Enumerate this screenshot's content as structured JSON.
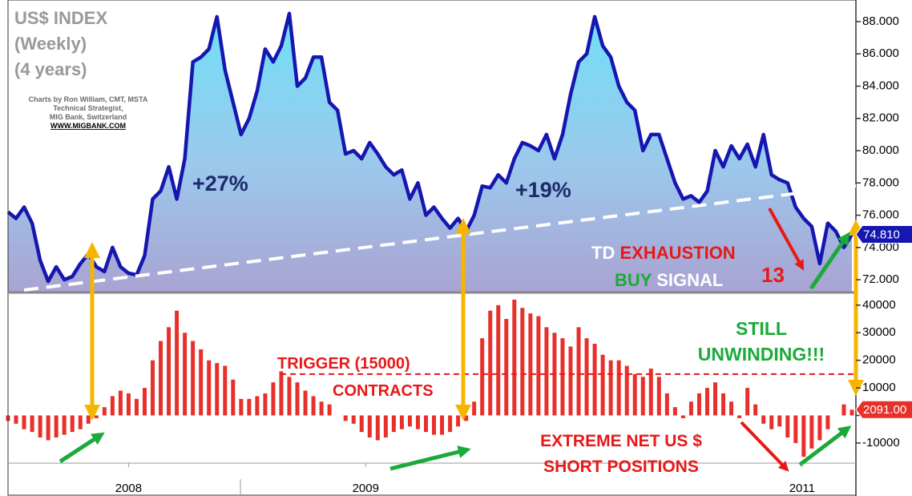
{
  "chart_data": [
    {
      "type": "line",
      "color": "#1616b0",
      "values": [
        76.2,
        75.8,
        76.5,
        75.5,
        73.2,
        71.9,
        72.8,
        72.0,
        72.2,
        73.0,
        73.6,
        72.8,
        72.5,
        74.0,
        72.8,
        72.4,
        72.3,
        73.5,
        77.0,
        77.5,
        79.0,
        77.0,
        79.5,
        85.5,
        85.8,
        86.3,
        88.3,
        85.0,
        83.0,
        81.0,
        82.0,
        83.7,
        86.3,
        85.5,
        86.5,
        88.5,
        84.0,
        84.5,
        85.8,
        85.8,
        83.0,
        82.5,
        79.8,
        80.0,
        79.5,
        80.5,
        79.8,
        79.0,
        78.5,
        78.8,
        77.0,
        78.0,
        76.0,
        76.5,
        75.8,
        75.2,
        75.8,
        75.0,
        76.0,
        77.8,
        77.7,
        78.5,
        78.0,
        79.5,
        80.5,
        80.3,
        80.0,
        81.0,
        79.5,
        81.0,
        83.5,
        85.5,
        86.0,
        88.3,
        86.5,
        85.8,
        84.0,
        83.0,
        82.5,
        80.0,
        81.0,
        81.0,
        79.5,
        78.0,
        77.0,
        77.2,
        76.8,
        77.5,
        80.0,
        79.0,
        80.3,
        79.5,
        80.4,
        79.0,
        81.0,
        78.5,
        78.2,
        78.0,
        76.5,
        75.8,
        75.3,
        73.0,
        75.5,
        75.0,
        74.0,
        74.81
      ],
      "value_labels": [
        null,
        null,
        null,
        null,
        null,
        null,
        null,
        null,
        null,
        null,
        null,
        null,
        null,
        null,
        null,
        null,
        null,
        null,
        null,
        null,
        null,
        null,
        null,
        null,
        null,
        null,
        null,
        null,
        null,
        null,
        null,
        null,
        null,
        null,
        null,
        null,
        null,
        null,
        null,
        null,
        null,
        null,
        null,
        null,
        null,
        null,
        null,
        null,
        null,
        null,
        null,
        null,
        null,
        null,
        null,
        null,
        null,
        null,
        null,
        null,
        null,
        null,
        null,
        null,
        null,
        null,
        null,
        null,
        null,
        null,
        null,
        null,
        null,
        null,
        null,
        null,
        null,
        null,
        null,
        null,
        null,
        null,
        null,
        null,
        null,
        null,
        null,
        null,
        null,
        null,
        null,
        null,
        null,
        null,
        null,
        null,
        null,
        null,
        null,
        null,
        null,
        null,
        null,
        null,
        null,
        "74.810"
      ],
      "xlim": [
        0,
        105
      ],
      "ylim": [
        71.26,
        89.34
      ],
      "yticks": [
        {
          "value": 72,
          "label": "72.000"
        },
        {
          "value": 74,
          "label": "74.000"
        },
        {
          "value": 76,
          "label": "76.000"
        },
        {
          "value": 78,
          "label": "78.000"
        },
        {
          "value": 80,
          "label": "80.000"
        },
        {
          "value": 82,
          "label": "82.000"
        },
        {
          "value": 84,
          "label": "84.000"
        },
        {
          "value": 86,
          "label": "86.000"
        },
        {
          "value": 88,
          "label": "88.000"
        }
      ]
    },
    {
      "type": "bar",
      "color": "#e8302a",
      "values": [
        -2000,
        -3000,
        -5000,
        -6000,
        -8000,
        -9000,
        -8000,
        -7000,
        -6000,
        -5000,
        -3000,
        -1000,
        3000,
        7000,
        9000,
        8000,
        6000,
        10000,
        20000,
        27000,
        32000,
        38000,
        30000,
        27000,
        24000,
        20000,
        19000,
        18000,
        13000,
        6000,
        6000,
        7000,
        8000,
        12000,
        16000,
        14000,
        12000,
        9000,
        7000,
        5000,
        4000,
        0,
        -2000,
        -3000,
        -6000,
        -8000,
        -9000,
        -8000,
        -6000,
        -5000,
        -4000,
        -5000,
        -6000,
        -7000,
        -7000,
        -6000,
        -4000,
        -2000,
        5000,
        28000,
        38000,
        40000,
        35000,
        42000,
        39000,
        37000,
        36000,
        32000,
        30000,
        28000,
        25000,
        32000,
        28000,
        26000,
        22000,
        20000,
        20000,
        18000,
        15000,
        14000,
        17000,
        14000,
        8000,
        3000,
        -1000,
        5000,
        8000,
        10000,
        12000,
        8000,
        5000,
        -1000,
        10000,
        4000,
        -3000,
        -5000,
        -4000,
        -8000,
        -10000,
        -15000,
        -12000,
        -9000,
        -5000,
        0,
        4000,
        2091
      ],
      "value_labels": [
        null,
        null,
        null,
        null,
        null,
        null,
        null,
        null,
        null,
        null,
        null,
        null,
        null,
        null,
        null,
        null,
        null,
        null,
        null,
        null,
        null,
        null,
        null,
        null,
        null,
        null,
        null,
        null,
        null,
        null,
        null,
        null,
        null,
        null,
        null,
        null,
        null,
        null,
        null,
        null,
        null,
        null,
        null,
        null,
        null,
        null,
        null,
        null,
        null,
        null,
        null,
        null,
        null,
        null,
        null,
        null,
        null,
        null,
        null,
        null,
        null,
        null,
        null,
        null,
        null,
        null,
        null,
        null,
        null,
        null,
        null,
        null,
        null,
        null,
        null,
        null,
        null,
        null,
        null,
        null,
        null,
        null,
        null,
        null,
        null,
        null,
        null,
        null,
        null,
        null,
        null,
        null,
        null,
        null,
        null,
        null,
        null,
        null,
        null,
        null,
        null,
        null,
        null,
        null,
        null,
        "2091.00"
      ],
      "trigger_level": 15000,
      "xlim": [
        0,
        105
      ],
      "ylim": [
        -17300,
        44600
      ],
      "yticks": [
        -10000,
        0,
        10000,
        20000,
        30000,
        40000
      ],
      "xticks": [
        {
          "value": 15,
          "label": "2008"
        },
        {
          "value": 44.5,
          "label": "2009"
        },
        {
          "value": 98.8,
          "label": "2011"
        }
      ]
    }
  ],
  "annotations": [
    {
      "text": "US$ INDEX",
      "color": "#999999"
    },
    {
      "text": "(Weekly)",
      "color": "#999999"
    },
    {
      "text": "(4 years)",
      "color": "#999999"
    },
    {
      "text": "Charts by Ron William, CMT, MSTA",
      "color": "#6b6b6b"
    },
    {
      "text": "Technical Strategist,",
      "color": "#6b6b6b"
    },
    {
      "text": "MIG Bank, Switzerland",
      "color": "#6b6b6b"
    },
    {
      "text": "WWW.MIGBANK.COM",
      "color": "#000000"
    },
    {
      "text": "+27%",
      "color": "#1b2a6b"
    },
    {
      "text": "+19%",
      "color": "#1b2a6b"
    },
    {
      "text": "TD",
      "color": "#ffffff"
    },
    {
      "text": "EXHAUSTION",
      "color": "#e81818"
    },
    {
      "text": "BUY",
      "color": "#1aaa3a"
    },
    {
      "text": "SIGNAL",
      "color": "#ffffff"
    },
    {
      "text": "13",
      "color": "#e81818"
    },
    {
      "text": "TRIGGER (15000)",
      "color": "#e81818"
    },
    {
      "text": "CONTRACTS",
      "color": "#e81818"
    },
    {
      "text": "STILL",
      "color": "#1aaa3a"
    },
    {
      "text": "UNWINDING!!!",
      "color": "#1aaa3a"
    },
    {
      "text": "EXTREME NET US $",
      "color": "#e81818"
    },
    {
      "text": "SHORT POSITIONS",
      "color": "#e81818"
    }
  ]
}
